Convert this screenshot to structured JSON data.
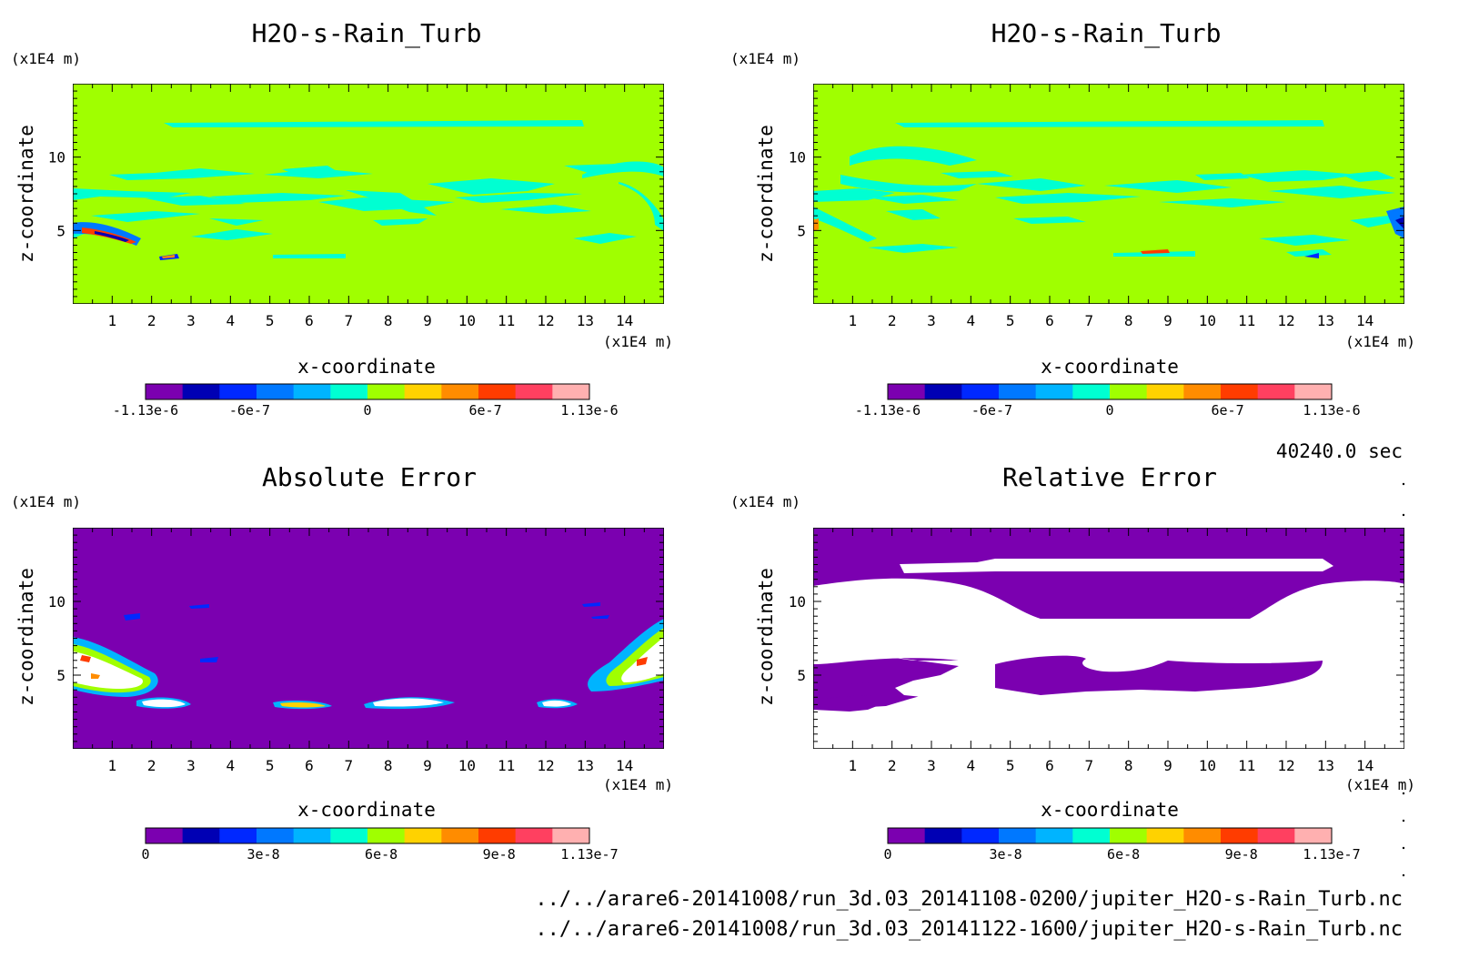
{
  "figure": {
    "time_label": "40240.0 sec",
    "file_lines": [
      "../../arare6-20141008/run_3d.03_20141108-0200/jupiter_H2O-s-Rain_Turb.nc",
      "../../arare6-20141008/run_3d.03_20141122-1600/jupiter_H2O-s-Rain_Turb.nc"
    ]
  },
  "chart_data": [
    {
      "type": "heatmap",
      "title": "H2O-s-Rain_Turb",
      "xlabel": "x-coordinate",
      "ylabel": "z-coordinate",
      "x_unit": "(x1E4 m)",
      "y_unit": "(x1E4 m)",
      "xlim": [
        0,
        15
      ],
      "ylim": [
        0,
        15
      ],
      "x_ticks": [
        "1",
        "2",
        "3",
        "4",
        "5",
        "6",
        "7",
        "8",
        "9",
        "10",
        "11",
        "12",
        "13",
        "14"
      ],
      "y_ticks": [
        "5",
        "10"
      ],
      "background_level": 0,
      "colorbar": {
        "levels": [
          "#7b00b0",
          "#0000b4",
          "#0028ff",
          "#0078ff",
          "#00b4ff",
          "#00ffd2",
          "#a0ff00",
          "#ffd200",
          "#ff8c00",
          "#ff3c00",
          "#ff4060",
          "#ffb0b0"
        ],
        "tick_labels": [
          "-1.13e-6",
          "-6e-7",
          "0",
          "6e-7",
          "1.13e-6"
        ],
        "tick_values": [
          -1.13e-06,
          -6e-07,
          0,
          6e-07,
          1.13e-06
        ],
        "range": [
          -1.13e-06,
          1.13e-06
        ]
      }
    },
    {
      "type": "heatmap",
      "title": "H2O-s-Rain_Turb",
      "xlabel": "x-coordinate",
      "ylabel": "z-coordinate",
      "x_unit": "(x1E4 m)",
      "y_unit": "(x1E4 m)",
      "xlim": [
        0,
        15
      ],
      "ylim": [
        0,
        15
      ],
      "x_ticks": [
        "1",
        "2",
        "3",
        "4",
        "5",
        "6",
        "7",
        "8",
        "9",
        "10",
        "11",
        "12",
        "13",
        "14"
      ],
      "y_ticks": [
        "5",
        "10"
      ],
      "background_level": 0,
      "colorbar": {
        "levels": [
          "#7b00b0",
          "#0000b4",
          "#0028ff",
          "#0078ff",
          "#00b4ff",
          "#00ffd2",
          "#a0ff00",
          "#ffd200",
          "#ff8c00",
          "#ff3c00",
          "#ff4060",
          "#ffb0b0"
        ],
        "tick_labels": [
          "-1.13e-6",
          "-6e-7",
          "0",
          "6e-7",
          "1.13e-6"
        ],
        "tick_values": [
          -1.13e-06,
          -6e-07,
          0,
          6e-07,
          1.13e-06
        ],
        "range": [
          -1.13e-06,
          1.13e-06
        ]
      }
    },
    {
      "type": "heatmap",
      "title": "Absolute Error",
      "xlabel": "x-coordinate",
      "ylabel": "z-coordinate",
      "x_unit": "(x1E4 m)",
      "y_unit": "(x1E4 m)",
      "xlim": [
        0,
        15
      ],
      "ylim": [
        0,
        15
      ],
      "x_ticks": [
        "1",
        "2",
        "3",
        "4",
        "5",
        "6",
        "7",
        "8",
        "9",
        "10",
        "11",
        "12",
        "13",
        "14"
      ],
      "y_ticks": [
        "5",
        "10"
      ],
      "background_level": 0,
      "colorbar": {
        "levels": [
          "#7b00b0",
          "#0000b4",
          "#0028ff",
          "#0078ff",
          "#00b4ff",
          "#00ffd2",
          "#a0ff00",
          "#ffd200",
          "#ff8c00",
          "#ff3c00",
          "#ff4060",
          "#ffb0b0"
        ],
        "tick_labels": [
          "0",
          "3e-8",
          "6e-8",
          "9e-8",
          "1.13e-7"
        ],
        "tick_values": [
          0,
          3e-08,
          6e-08,
          9e-08,
          1.13e-07
        ],
        "range": [
          0,
          1.13e-07
        ]
      }
    },
    {
      "type": "heatmap",
      "title": "Relative Error",
      "xlabel": "x-coordinate",
      "ylabel": "z-coordinate",
      "x_unit": "(x1E4 m)",
      "y_unit": "(x1E4 m)",
      "xlim": [
        0,
        15
      ],
      "ylim": [
        0,
        15
      ],
      "x_ticks": [
        "1",
        "2",
        "3",
        "4",
        "5",
        "6",
        "7",
        "8",
        "9",
        "10",
        "11",
        "12",
        "13",
        "14"
      ],
      "y_ticks": [
        "5",
        "10"
      ],
      "background_level": 0,
      "colorbar": {
        "levels": [
          "#7b00b0",
          "#0000b4",
          "#0028ff",
          "#0078ff",
          "#00b4ff",
          "#00ffd2",
          "#a0ff00",
          "#ffd200",
          "#ff8c00",
          "#ff3c00",
          "#ff4060",
          "#ffb0b0"
        ],
        "tick_labels": [
          "0",
          "3e-8",
          "6e-8",
          "9e-8",
          "1.13e-7"
        ],
        "tick_values": [
          0,
          3e-08,
          6e-08,
          9e-08,
          1.13e-07
        ],
        "range": [
          0,
          1.13e-07
        ]
      }
    }
  ]
}
